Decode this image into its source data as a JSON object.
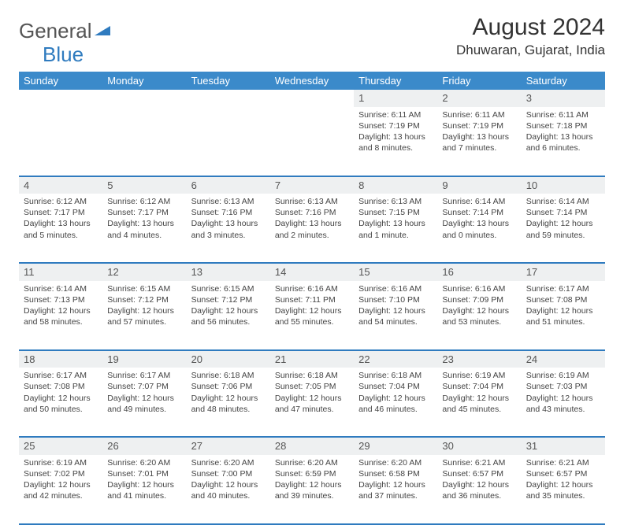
{
  "logo": {
    "text1": "General",
    "text2": "Blue"
  },
  "title": "August 2024",
  "location": "Dhuwaran, Gujarat, India",
  "day_headers": [
    "Sunday",
    "Monday",
    "Tuesday",
    "Wednesday",
    "Thursday",
    "Friday",
    "Saturday"
  ],
  "colors": {
    "header_bg": "#3b8aca",
    "rule": "#2f7bbf",
    "daynum_bg": "#eef0f1"
  },
  "weeks": [
    [
      null,
      null,
      null,
      null,
      {
        "n": "1",
        "sr": "Sunrise: 6:11 AM",
        "ss": "Sunset: 7:19 PM",
        "dl": "Daylight: 13 hours and 8 minutes."
      },
      {
        "n": "2",
        "sr": "Sunrise: 6:11 AM",
        "ss": "Sunset: 7:19 PM",
        "dl": "Daylight: 13 hours and 7 minutes."
      },
      {
        "n": "3",
        "sr": "Sunrise: 6:11 AM",
        "ss": "Sunset: 7:18 PM",
        "dl": "Daylight: 13 hours and 6 minutes."
      }
    ],
    [
      {
        "n": "4",
        "sr": "Sunrise: 6:12 AM",
        "ss": "Sunset: 7:17 PM",
        "dl": "Daylight: 13 hours and 5 minutes."
      },
      {
        "n": "5",
        "sr": "Sunrise: 6:12 AM",
        "ss": "Sunset: 7:17 PM",
        "dl": "Daylight: 13 hours and 4 minutes."
      },
      {
        "n": "6",
        "sr": "Sunrise: 6:13 AM",
        "ss": "Sunset: 7:16 PM",
        "dl": "Daylight: 13 hours and 3 minutes."
      },
      {
        "n": "7",
        "sr": "Sunrise: 6:13 AM",
        "ss": "Sunset: 7:16 PM",
        "dl": "Daylight: 13 hours and 2 minutes."
      },
      {
        "n": "8",
        "sr": "Sunrise: 6:13 AM",
        "ss": "Sunset: 7:15 PM",
        "dl": "Daylight: 13 hours and 1 minute."
      },
      {
        "n": "9",
        "sr": "Sunrise: 6:14 AM",
        "ss": "Sunset: 7:14 PM",
        "dl": "Daylight: 13 hours and 0 minutes."
      },
      {
        "n": "10",
        "sr": "Sunrise: 6:14 AM",
        "ss": "Sunset: 7:14 PM",
        "dl": "Daylight: 12 hours and 59 minutes."
      }
    ],
    [
      {
        "n": "11",
        "sr": "Sunrise: 6:14 AM",
        "ss": "Sunset: 7:13 PM",
        "dl": "Daylight: 12 hours and 58 minutes."
      },
      {
        "n": "12",
        "sr": "Sunrise: 6:15 AM",
        "ss": "Sunset: 7:12 PM",
        "dl": "Daylight: 12 hours and 57 minutes."
      },
      {
        "n": "13",
        "sr": "Sunrise: 6:15 AM",
        "ss": "Sunset: 7:12 PM",
        "dl": "Daylight: 12 hours and 56 minutes."
      },
      {
        "n": "14",
        "sr": "Sunrise: 6:16 AM",
        "ss": "Sunset: 7:11 PM",
        "dl": "Daylight: 12 hours and 55 minutes."
      },
      {
        "n": "15",
        "sr": "Sunrise: 6:16 AM",
        "ss": "Sunset: 7:10 PM",
        "dl": "Daylight: 12 hours and 54 minutes."
      },
      {
        "n": "16",
        "sr": "Sunrise: 6:16 AM",
        "ss": "Sunset: 7:09 PM",
        "dl": "Daylight: 12 hours and 53 minutes."
      },
      {
        "n": "17",
        "sr": "Sunrise: 6:17 AM",
        "ss": "Sunset: 7:08 PM",
        "dl": "Daylight: 12 hours and 51 minutes."
      }
    ],
    [
      {
        "n": "18",
        "sr": "Sunrise: 6:17 AM",
        "ss": "Sunset: 7:08 PM",
        "dl": "Daylight: 12 hours and 50 minutes."
      },
      {
        "n": "19",
        "sr": "Sunrise: 6:17 AM",
        "ss": "Sunset: 7:07 PM",
        "dl": "Daylight: 12 hours and 49 minutes."
      },
      {
        "n": "20",
        "sr": "Sunrise: 6:18 AM",
        "ss": "Sunset: 7:06 PM",
        "dl": "Daylight: 12 hours and 48 minutes."
      },
      {
        "n": "21",
        "sr": "Sunrise: 6:18 AM",
        "ss": "Sunset: 7:05 PM",
        "dl": "Daylight: 12 hours and 47 minutes."
      },
      {
        "n": "22",
        "sr": "Sunrise: 6:18 AM",
        "ss": "Sunset: 7:04 PM",
        "dl": "Daylight: 12 hours and 46 minutes."
      },
      {
        "n": "23",
        "sr": "Sunrise: 6:19 AM",
        "ss": "Sunset: 7:04 PM",
        "dl": "Daylight: 12 hours and 45 minutes."
      },
      {
        "n": "24",
        "sr": "Sunrise: 6:19 AM",
        "ss": "Sunset: 7:03 PM",
        "dl": "Daylight: 12 hours and 43 minutes."
      }
    ],
    [
      {
        "n": "25",
        "sr": "Sunrise: 6:19 AM",
        "ss": "Sunset: 7:02 PM",
        "dl": "Daylight: 12 hours and 42 minutes."
      },
      {
        "n": "26",
        "sr": "Sunrise: 6:20 AM",
        "ss": "Sunset: 7:01 PM",
        "dl": "Daylight: 12 hours and 41 minutes."
      },
      {
        "n": "27",
        "sr": "Sunrise: 6:20 AM",
        "ss": "Sunset: 7:00 PM",
        "dl": "Daylight: 12 hours and 40 minutes."
      },
      {
        "n": "28",
        "sr": "Sunrise: 6:20 AM",
        "ss": "Sunset: 6:59 PM",
        "dl": "Daylight: 12 hours and 39 minutes."
      },
      {
        "n": "29",
        "sr": "Sunrise: 6:20 AM",
        "ss": "Sunset: 6:58 PM",
        "dl": "Daylight: 12 hours and 37 minutes."
      },
      {
        "n": "30",
        "sr": "Sunrise: 6:21 AM",
        "ss": "Sunset: 6:57 PM",
        "dl": "Daylight: 12 hours and 36 minutes."
      },
      {
        "n": "31",
        "sr": "Sunrise: 6:21 AM",
        "ss": "Sunset: 6:57 PM",
        "dl": "Daylight: 12 hours and 35 minutes."
      }
    ]
  ]
}
